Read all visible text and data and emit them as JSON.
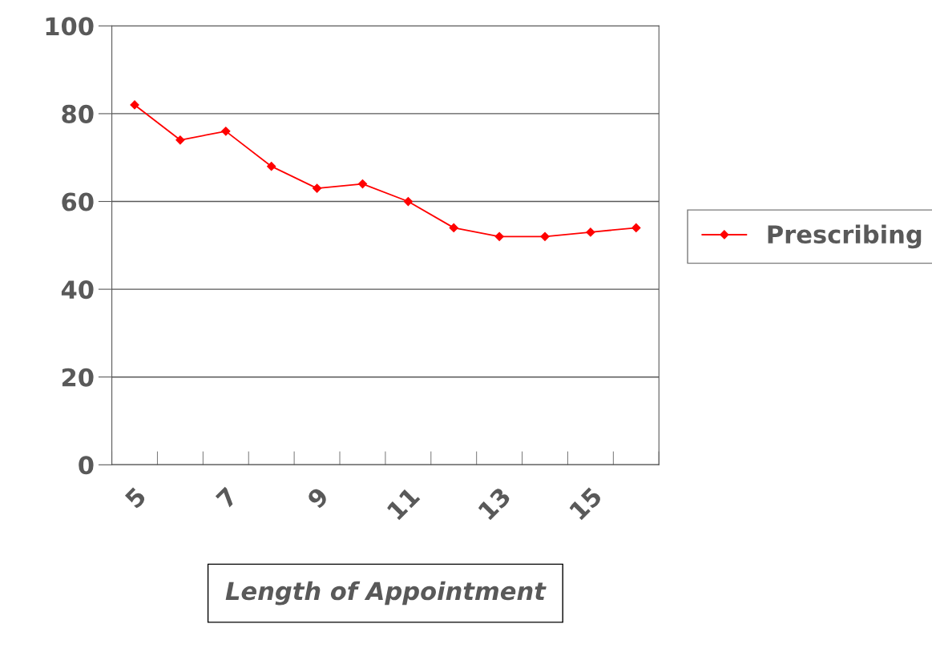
{
  "chart_data": {
    "type": "line",
    "xlabel": "Length of Appointment",
    "categories": [
      "5",
      null,
      "7",
      null,
      "9",
      null,
      "11",
      null,
      "13",
      null,
      "15",
      null
    ],
    "series": [
      {
        "name": "Prescribing",
        "color": "#ff0000",
        "values": [
          82,
          74,
          76,
          68,
          63,
          64,
          60,
          54,
          52,
          52,
          53,
          54
        ]
      }
    ],
    "ylim": [
      0,
      100
    ],
    "yticks": [
      0,
      20,
      40,
      60,
      80,
      100
    ],
    "grid": "y",
    "legend": "right",
    "marker": "diamond",
    "line_style": "solid"
  }
}
